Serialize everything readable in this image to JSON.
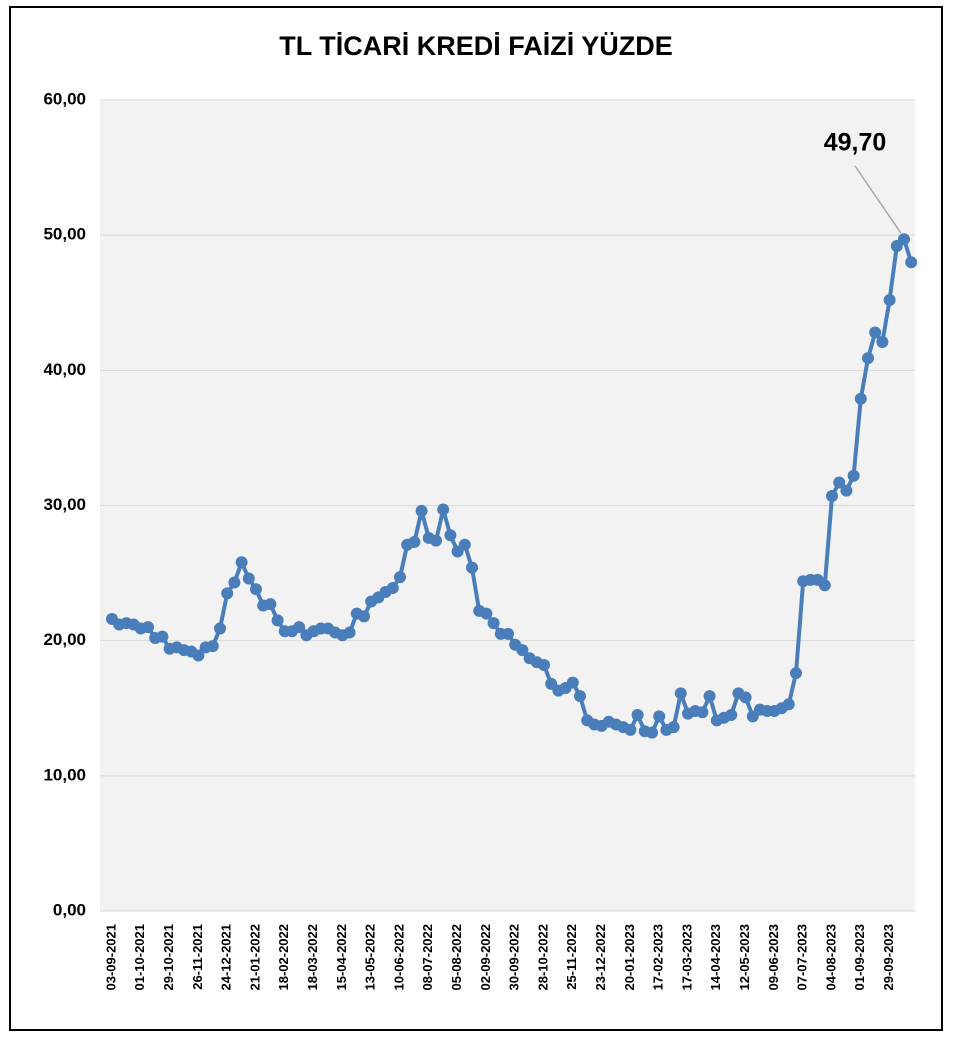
{
  "chart_data": {
    "type": "line",
    "title": "TL TİCARİ KREDİ FAİZİ YÜZDE",
    "categories": [
      "03-09-2021",
      null,
      null,
      null,
      "01-10-2021",
      null,
      null,
      null,
      "29-10-2021",
      null,
      null,
      null,
      "26-11-2021",
      null,
      null,
      null,
      "24-12-2021",
      null,
      null,
      null,
      "21-01-2022",
      null,
      null,
      null,
      "18-02-2022",
      null,
      null,
      null,
      "18-03-2022",
      null,
      null,
      null,
      "15-04-2022",
      null,
      null,
      null,
      "13-05-2022",
      null,
      null,
      null,
      "10-06-2022",
      null,
      null,
      null,
      "08-07-2022",
      null,
      null,
      null,
      "05-08-2022",
      null,
      null,
      null,
      "02-09-2022",
      null,
      null,
      null,
      "30-09-2022",
      null,
      null,
      null,
      "28-10-2022",
      null,
      null,
      null,
      "25-11-2022",
      null,
      null,
      null,
      "23-12-2022",
      null,
      null,
      null,
      "20-01-2023",
      null,
      null,
      null,
      "17-02-2023",
      null,
      null,
      null,
      "17-03-2023",
      null,
      null,
      null,
      "14-04-2023",
      null,
      null,
      null,
      "12-05-2023",
      null,
      null,
      null,
      "09-06-2023",
      null,
      null,
      null,
      "07-07-2023",
      null,
      null,
      null,
      "04-08-2023",
      null,
      null,
      null,
      "01-09-2023",
      null,
      null,
      null,
      "29-09-2023",
      null,
      null,
      null
    ],
    "series": [
      {
        "name": "TL Ticari Kredi Faizi",
        "color": "#4a7ebb",
        "values": [
          21.6,
          21.2,
          21.3,
          21.2,
          20.9,
          21.0,
          20.2,
          20.3,
          19.4,
          19.5,
          19.3,
          19.2,
          18.9,
          19.5,
          19.6,
          20.9,
          23.5,
          24.3,
          25.8,
          24.6,
          23.8,
          22.6,
          22.7,
          21.5,
          20.7,
          20.7,
          21.0,
          20.4,
          20.7,
          20.9,
          20.9,
          20.6,
          20.4,
          20.6,
          22.0,
          21.8,
          22.9,
          23.2,
          23.6,
          23.9,
          24.7,
          27.1,
          27.3,
          29.6,
          27.6,
          27.4,
          29.7,
          27.8,
          26.6,
          27.1,
          25.4,
          22.2,
          22.0,
          21.3,
          20.5,
          20.5,
          19.7,
          19.3,
          18.7,
          18.4,
          18.2,
          16.8,
          16.3,
          16.5,
          16.9,
          15.9,
          14.1,
          13.8,
          13.7,
          14.0,
          13.8,
          13.6,
          13.4,
          14.5,
          13.3,
          13.2,
          14.4,
          13.4,
          13.6,
          16.1,
          14.6,
          14.8,
          14.7,
          15.9,
          14.1,
          14.3,
          14.5,
          16.1,
          15.8,
          14.4,
          14.9,
          14.8,
          14.8,
          15.0,
          15.3,
          17.6,
          24.4,
          24.5,
          24.5,
          24.1,
          30.7,
          31.7,
          31.1,
          32.2,
          37.9,
          40.9,
          42.8,
          42.1,
          45.2,
          49.2,
          49.7,
          48.0
        ],
        "value_labels": [
          null,
          null,
          null,
          null,
          null,
          null,
          null,
          null,
          null,
          null,
          null,
          null,
          null,
          null,
          null,
          null,
          null,
          null,
          null,
          null,
          null,
          null,
          null,
          null,
          null,
          null,
          null,
          null,
          null,
          null,
          null,
          null,
          null,
          null,
          null,
          null,
          null,
          null,
          null,
          null,
          null,
          null,
          null,
          null,
          null,
          null,
          null,
          null,
          null,
          null,
          null,
          null,
          null,
          null,
          null,
          null,
          null,
          null,
          null,
          null,
          null,
          null,
          null,
          null,
          null,
          null,
          null,
          null,
          null,
          null,
          null,
          null,
          null,
          null,
          null,
          null,
          null,
          null,
          null,
          null,
          null,
          null,
          null,
          null,
          null,
          null,
          null,
          null,
          null,
          null,
          null,
          null,
          null,
          null,
          null,
          null,
          null,
          null,
          null,
          null,
          null,
          null,
          null,
          null,
          null,
          null,
          null,
          null,
          null,
          null,
          "49,70",
          null
        ]
      }
    ],
    "ylim": [
      0,
      60
    ],
    "yticks": [
      {
        "value": 0,
        "label": "0,00"
      },
      {
        "value": 10,
        "label": "10,00"
      },
      {
        "value": 20,
        "label": "20,00"
      },
      {
        "value": 30,
        "label": "30,00"
      },
      {
        "value": 40,
        "label": "40,00"
      },
      {
        "value": 50,
        "label": "50,00"
      },
      {
        "value": 60,
        "label": "60,00"
      }
    ],
    "grid": true
  }
}
